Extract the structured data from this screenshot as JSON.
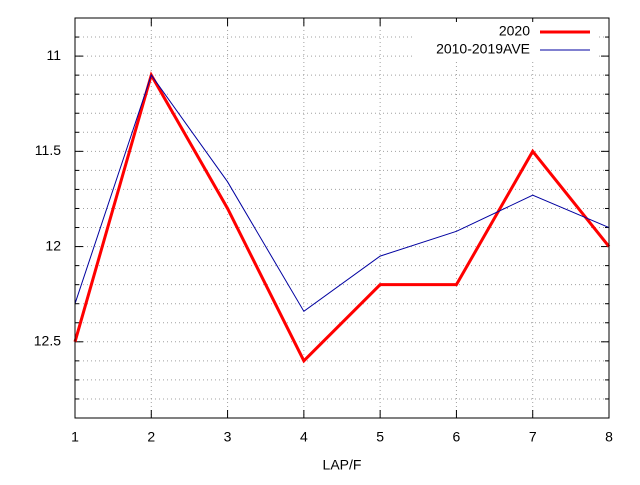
{
  "chart_data": {
    "type": "line",
    "x_label": "LAP/F",
    "x": [
      1,
      2,
      3,
      4,
      5,
      6,
      7,
      8
    ],
    "xlim": [
      1,
      8
    ],
    "xticks": [
      1,
      2,
      3,
      4,
      5,
      6,
      7,
      8
    ],
    "ylim": [
      10.8,
      12.9
    ],
    "y_inverted": true,
    "yticks": [
      11,
      11.5,
      12,
      12.5
    ],
    "y_minor_ticks": [
      10.9,
      11.1,
      11.2,
      11.3,
      11.4,
      11.6,
      11.7,
      11.8,
      11.9,
      12.1,
      12.2,
      12.3,
      12.4,
      12.6,
      12.7,
      12.8
    ],
    "grid": true,
    "legend": "top-right",
    "series": [
      {
        "name": "2020",
        "color": "#ff0000",
        "values": [
          12.5,
          11.1,
          11.8,
          12.6,
          12.2,
          12.2,
          11.5,
          12.0
        ]
      },
      {
        "name": "2010-2019AVE",
        "color": "#0000a0",
        "values": [
          12.3,
          11.1,
          11.66,
          12.34,
          12.05,
          11.92,
          11.73,
          11.9
        ]
      }
    ]
  }
}
